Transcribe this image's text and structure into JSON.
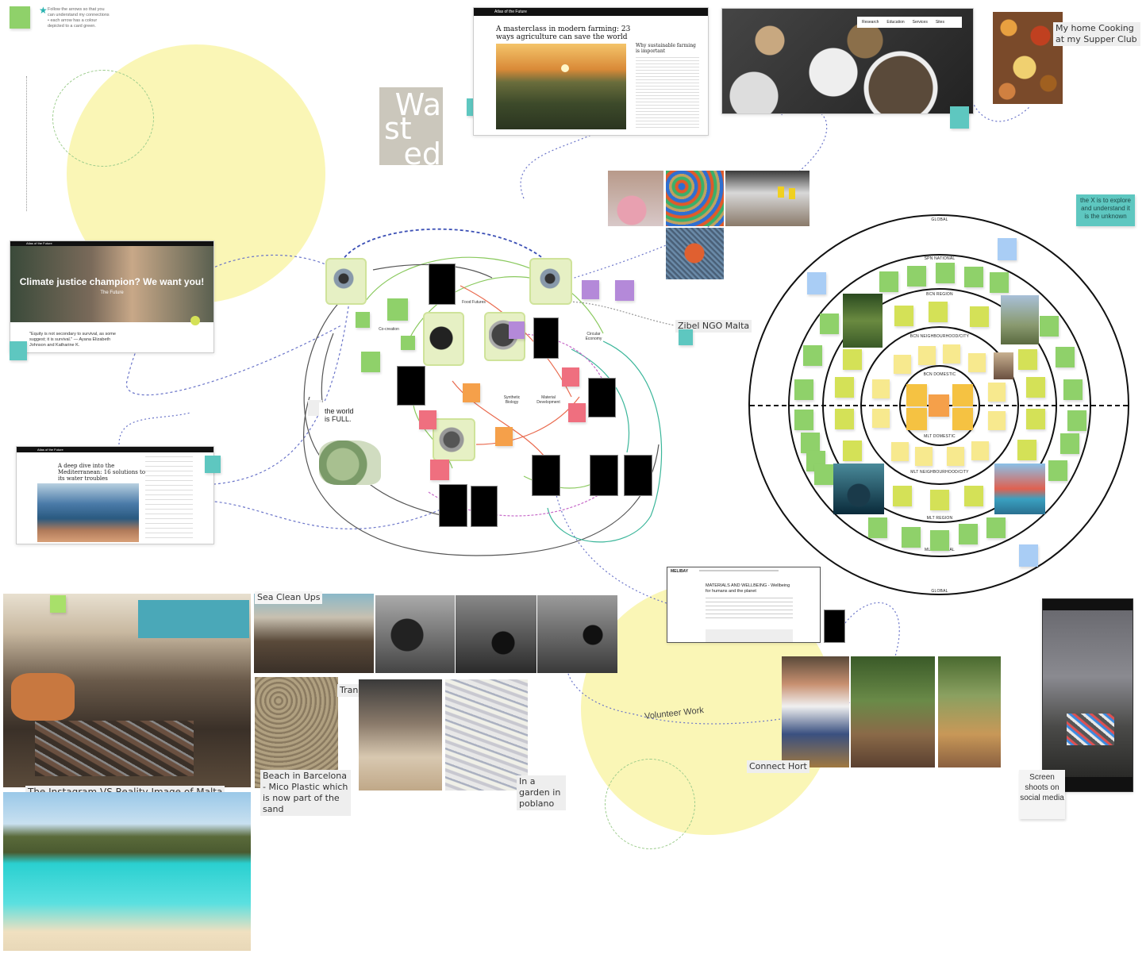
{
  "instructions": {
    "line1": "Follow the arrows so that you",
    "line2": "can understand my connections",
    "line3": "• each arrow has a colour",
    "line4": "  depicted to a card green."
  },
  "wasted": {
    "line1": "Wa",
    "line2": "st",
    "line3": "ed"
  },
  "atlas_top": {
    "brand": "Atlas of the Future",
    "headline": "A masterclass in modern farming: 23 ways agriculture can save the world",
    "side_title": "Why sustainable farming is important"
  },
  "atlas_left": {
    "brand": "Atlas of the Future",
    "hero": "Climate justice champion? We want you!",
    "sub": "The Future",
    "quote": "\"Equity is not secondary to survival, as some suggest; it is survival.\" — Ayana Elizabeth Johnson and Katharine K."
  },
  "atlas_water": {
    "brand": "Atlas of the Future",
    "headline": "A deep dive into the Mediterranean: 16 solutions to its water troubles"
  },
  "food_site": {
    "nav": [
      "Research",
      "Education",
      "Services",
      "Sites"
    ]
  },
  "labels": {
    "supper_club": "My home Cooking at my Supper Club",
    "zibel": "Zibel NGO Malta",
    "sea_cleanups": "Sea Clean Ups",
    "transfolab": "TransfoLab",
    "beach_bcn": "Beach in Barcelona - Mico Plastic which is now part of the sand",
    "garden_poblano": "In a garden in poblano",
    "instagram_vs": "The Instagram VS Reality Image of Malta",
    "connect_hort": "Connect Hort",
    "volunteer": "Volunteer Work",
    "screenshots": "Screen shoots on social media",
    "x_explore": "the X is to explore and understand it is the unknown"
  },
  "world_full": {
    "line1": "the world",
    "line2": "is FULL."
  },
  "mind_map": {
    "nodes": [
      "Co-creation",
      "Synthetic Biology",
      "Material Development",
      "Circular Economy",
      "Food Futures"
    ]
  },
  "rings": {
    "global_top": "GLOBAL",
    "spn_national": "SPN NATIONAL",
    "bcn_region": "BCN REGION",
    "bcn_city": "BCN NEIGHBOURHOOD/CITY",
    "bcn_domestic": "BCN DOMESTIC",
    "mlt_domestic": "MLT DOMESTIC",
    "mlt_city": "MLT NEIGHBOURHOOD/CITY",
    "mlt_region": "MLT REGION",
    "mlt_national": "MLT NATIONAL",
    "global_bottom": "GLOBAL"
  },
  "materials_site": {
    "brand": "MELIBAY",
    "headline": "MATERIALS AND WELLBEING - Wellbeing for humans and the planet"
  },
  "colors": {
    "green_sticky": "#8fd16a",
    "teal_sticky": "#5ec7c0",
    "yellow_sticky": "#f7e98e",
    "lime_sticky": "#d4e157",
    "blue_sticky": "#a9cdf5",
    "orange_sticky": "#f5a04a",
    "pink_sticky": "#ef6f7f",
    "purple_sticky": "#b489d9",
    "yellow_circle": "#faf6b6"
  }
}
